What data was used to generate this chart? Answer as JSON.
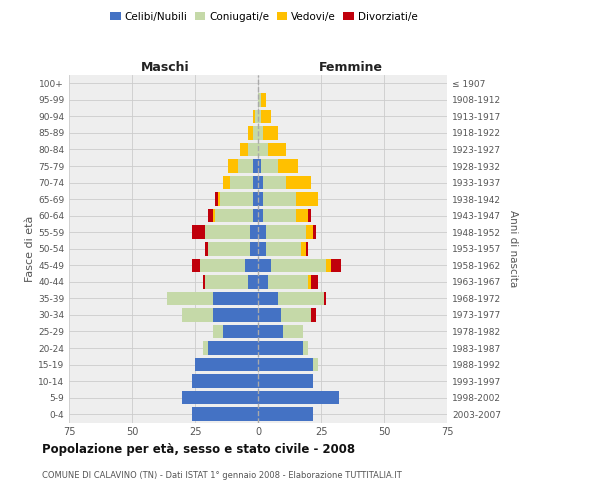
{
  "age_groups": [
    "0-4",
    "5-9",
    "10-14",
    "15-19",
    "20-24",
    "25-29",
    "30-34",
    "35-39",
    "40-44",
    "45-49",
    "50-54",
    "55-59",
    "60-64",
    "65-69",
    "70-74",
    "75-79",
    "80-84",
    "85-89",
    "90-94",
    "95-99",
    "100+"
  ],
  "birth_years": [
    "2003-2007",
    "1998-2002",
    "1993-1997",
    "1988-1992",
    "1983-1987",
    "1978-1982",
    "1973-1977",
    "1968-1972",
    "1963-1967",
    "1958-1962",
    "1953-1957",
    "1948-1952",
    "1943-1947",
    "1938-1942",
    "1933-1937",
    "1928-1932",
    "1923-1927",
    "1918-1922",
    "1913-1917",
    "1908-1912",
    "≤ 1907"
  ],
  "male_celibi": [
    26,
    30,
    26,
    25,
    20,
    14,
    18,
    18,
    4,
    5,
    3,
    3,
    2,
    2,
    2,
    2,
    0,
    0,
    0,
    0,
    0
  ],
  "male_coniugati": [
    0,
    0,
    0,
    0,
    2,
    4,
    12,
    18,
    17,
    18,
    17,
    18,
    15,
    13,
    9,
    6,
    4,
    2,
    1,
    0,
    0
  ],
  "male_vedovi": [
    0,
    0,
    0,
    0,
    0,
    0,
    0,
    0,
    0,
    0,
    0,
    0,
    1,
    1,
    3,
    4,
    3,
    2,
    1,
    0,
    0
  ],
  "male_divorziati": [
    0,
    0,
    0,
    0,
    0,
    0,
    0,
    0,
    1,
    3,
    1,
    5,
    2,
    1,
    0,
    0,
    0,
    0,
    0,
    0,
    0
  ],
  "female_celibi": [
    22,
    32,
    22,
    22,
    18,
    10,
    9,
    8,
    4,
    5,
    3,
    3,
    2,
    2,
    2,
    1,
    0,
    0,
    0,
    0,
    0
  ],
  "female_coniugati": [
    0,
    0,
    0,
    2,
    2,
    8,
    12,
    18,
    16,
    22,
    14,
    16,
    13,
    13,
    9,
    7,
    4,
    2,
    1,
    1,
    0
  ],
  "female_vedovi": [
    0,
    0,
    0,
    0,
    0,
    0,
    0,
    0,
    1,
    2,
    2,
    3,
    5,
    9,
    10,
    8,
    7,
    6,
    4,
    2,
    0
  ],
  "female_divorziati": [
    0,
    0,
    0,
    0,
    0,
    0,
    2,
    1,
    3,
    4,
    1,
    1,
    1,
    0,
    0,
    0,
    0,
    0,
    0,
    0,
    0
  ],
  "colors": {
    "celibi": "#4472c4",
    "coniugati": "#c5d9a8",
    "vedovi": "#ffc000",
    "divorziati": "#c0000c"
  },
  "legend_labels": [
    "Celibi/Nubili",
    "Coniugati/e",
    "Vedovi/e",
    "Divorziati/e"
  ],
  "title": "Popolazione per età, sesso e stato civile - 2008",
  "subtitle": "COMUNE DI CALAVINO (TN) - Dati ISTAT 1° gennaio 2008 - Elaborazione TUTTITALIA.IT",
  "ylabel_left": "Fasce di età",
  "ylabel_right": "Anni di nascita",
  "xlabel_left": "Maschi",
  "xlabel_right": "Femmine",
  "xlim": 75,
  "bg_color": "#eeeeee",
  "grid_color": "#cccccc"
}
